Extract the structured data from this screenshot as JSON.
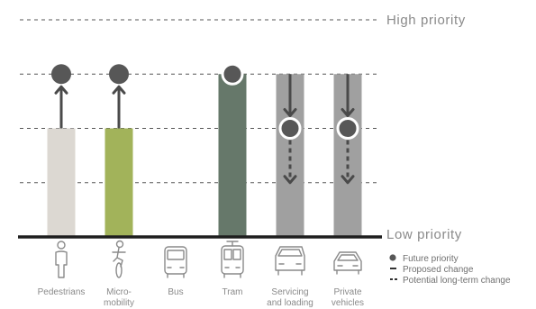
{
  "chart_data": {
    "type": "bar",
    "y_axis": {
      "top_label": "High priority",
      "bottom_label": "Low priority",
      "levels": 4
    },
    "categories": [
      {
        "label": [
          "Pedestrians"
        ],
        "icon": "pedestrian-icon",
        "current": 2,
        "future": 3,
        "change": "proposed",
        "color": "#dcd8d2"
      },
      {
        "label": [
          "Micro-",
          "mobility"
        ],
        "icon": "cyclist-icon",
        "current": 2,
        "future": 3,
        "change": "proposed",
        "color": "#a2b35a"
      },
      {
        "label": [
          "Bus"
        ],
        "icon": "bus-icon",
        "current": 0,
        "future": null,
        "change": "none",
        "color": "#9a9a9a"
      },
      {
        "label": [
          "Tram"
        ],
        "icon": "tram-icon",
        "current": 3,
        "future": 3,
        "change": "none",
        "color": "#66786a"
      },
      {
        "label": [
          "Servicing",
          "and loading"
        ],
        "icon": "van-icon",
        "current": 3,
        "future": 2,
        "change": "proposed_then_long_term",
        "long_term_target": 1,
        "color": "#a0a0a0"
      },
      {
        "label": [
          "Private",
          "vehicles"
        ],
        "icon": "car-icon",
        "current": 3,
        "future": 2,
        "change": "proposed_then_long_term",
        "long_term_target": 1,
        "color": "#a0a0a0"
      }
    ],
    "legend": [
      {
        "symbol": "circle",
        "label": "Future priority"
      },
      {
        "symbol": "solid-line",
        "label": "Proposed change"
      },
      {
        "symbol": "dashed-line",
        "label": "Potential long-term change"
      }
    ],
    "colors": {
      "marker": "#575757",
      "arrow": "#4a4a4a",
      "baseline": "#1e1e1e",
      "gridline": "#555555"
    }
  }
}
